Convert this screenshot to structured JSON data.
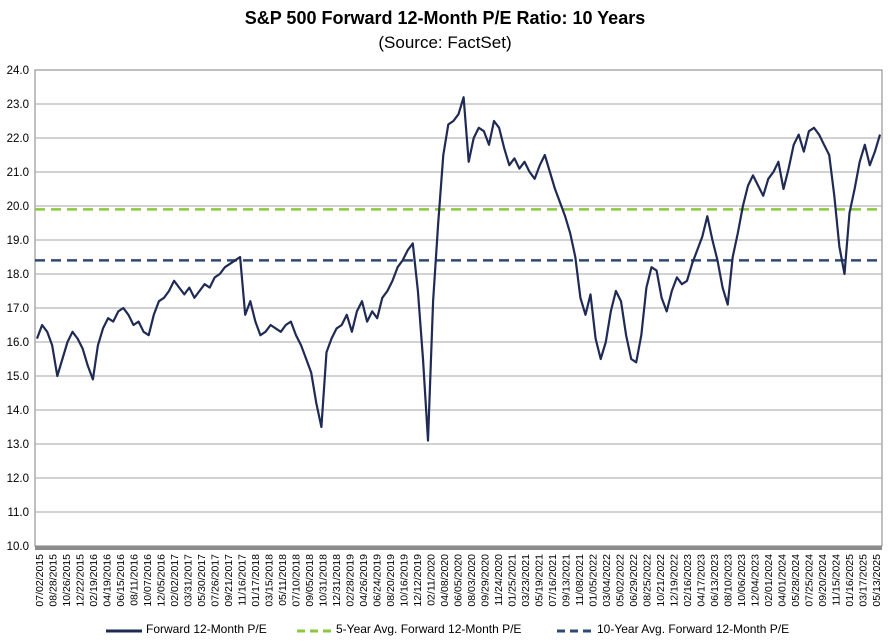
{
  "chart_data": {
    "type": "line",
    "title": "S&P 500 Forward 12-Month P/E Ratio: 10 Years",
    "subtitle": "(Source: FactSet)",
    "ylim": [
      10.0,
      24.0
    ],
    "y_ticks": [
      "10.0",
      "11.0",
      "12.0",
      "13.0",
      "14.0",
      "15.0",
      "16.0",
      "17.0",
      "18.0",
      "19.0",
      "20.0",
      "21.0",
      "22.0",
      "23.0",
      "24.0"
    ],
    "x_ticks": [
      "07/02/2015",
      "08/28/2015",
      "10/26/2015",
      "12/22/2015",
      "02/19/2016",
      "04/19/2016",
      "06/15/2016",
      "08/11/2016",
      "10/07/2016",
      "12/05/2016",
      "02/02/2017",
      "03/31/2017",
      "05/30/2017",
      "07/26/2017",
      "09/21/2017",
      "11/16/2017",
      "01/17/2018",
      "03/15/2018",
      "05/11/2018",
      "07/10/2018",
      "09/05/2018",
      "10/31/2018",
      "12/31/2018",
      "02/28/2019",
      "04/26/2019",
      "06/24/2019",
      "08/20/2019",
      "10/16/2019",
      "12/12/2019",
      "02/11/2020",
      "04/08/2020",
      "06/05/2020",
      "08/03/2020",
      "09/29/2020",
      "11/24/2020",
      "01/25/2021",
      "03/23/2021",
      "05/19/2021",
      "07/16/2021",
      "09/13/2021",
      "11/08/2021",
      "01/05/2022",
      "03/04/2022",
      "05/02/2022",
      "06/29/2022",
      "08/25/2022",
      "10/21/2022",
      "12/19/2022",
      "02/16/2023",
      "04/17/2023",
      "06/13/2023",
      "08/10/2023",
      "10/06/2023",
      "12/04/2023",
      "02/01/2024",
      "04/01/2024",
      "05/28/2024",
      "07/25/2024",
      "09/20/2024",
      "11/15/2024",
      "01/16/2025",
      "03/17/2025",
      "05/13/2025"
    ],
    "series": [
      {
        "name": "Forward 12-Month P/E",
        "color": "#1f2a55",
        "style": "solid",
        "values": [
          16.1,
          16.5,
          16.3,
          15.9,
          15.0,
          15.5,
          16.0,
          16.3,
          16.1,
          15.8,
          15.3,
          14.9,
          15.9,
          16.4,
          16.7,
          16.6,
          16.9,
          17.0,
          16.8,
          16.5,
          16.6,
          16.3,
          16.2,
          16.8,
          17.2,
          17.3,
          17.5,
          17.8,
          17.6,
          17.4,
          17.6,
          17.3,
          17.5,
          17.7,
          17.6,
          17.9,
          18.0,
          18.2,
          18.3,
          18.4,
          18.5,
          16.8,
          17.2,
          16.6,
          16.2,
          16.3,
          16.5,
          16.4,
          16.3,
          16.5,
          16.6,
          16.2,
          15.9,
          15.5,
          15.1,
          14.2,
          13.5,
          15.7,
          16.1,
          16.4,
          16.5,
          16.8,
          16.3,
          16.9,
          17.2,
          16.6,
          16.9,
          16.7,
          17.3,
          17.5,
          17.8,
          18.2,
          18.4,
          18.7,
          18.9,
          17.5,
          15.5,
          13.1,
          17.2,
          19.5,
          21.5,
          22.4,
          22.5,
          22.7,
          23.2,
          21.3,
          22.0,
          22.3,
          22.2,
          21.8,
          22.5,
          22.3,
          21.7,
          21.2,
          21.4,
          21.1,
          21.3,
          21.0,
          20.8,
          21.2,
          21.5,
          21.0,
          20.5,
          20.1,
          19.7,
          19.2,
          18.5,
          17.3,
          16.8,
          17.4,
          16.1,
          15.5,
          16.0,
          16.9,
          17.5,
          17.2,
          16.2,
          15.5,
          15.4,
          16.2,
          17.6,
          18.2,
          18.1,
          17.3,
          16.9,
          17.5,
          17.9,
          17.7,
          17.8,
          18.3,
          18.7,
          19.1,
          19.7,
          19.0,
          18.4,
          17.6,
          17.1,
          18.5,
          19.2,
          20.0,
          20.6,
          20.9,
          20.6,
          20.3,
          20.8,
          21.0,
          21.3,
          20.5,
          21.1,
          21.8,
          22.1,
          21.6,
          22.2,
          22.3,
          22.1,
          21.8,
          21.5,
          20.3,
          18.8,
          18.0,
          19.8,
          20.5,
          21.3,
          21.8,
          21.2,
          21.6,
          22.1
        ]
      },
      {
        "name": "5-Year Avg. Forward 12-Month P/E",
        "color": "#8dc63f",
        "style": "dashed",
        "value": 19.9
      },
      {
        "name": "10-Year Avg. Forward 12-Month P/E",
        "color": "#2e4a72",
        "style": "dashed",
        "value": 18.4
      }
    ]
  }
}
